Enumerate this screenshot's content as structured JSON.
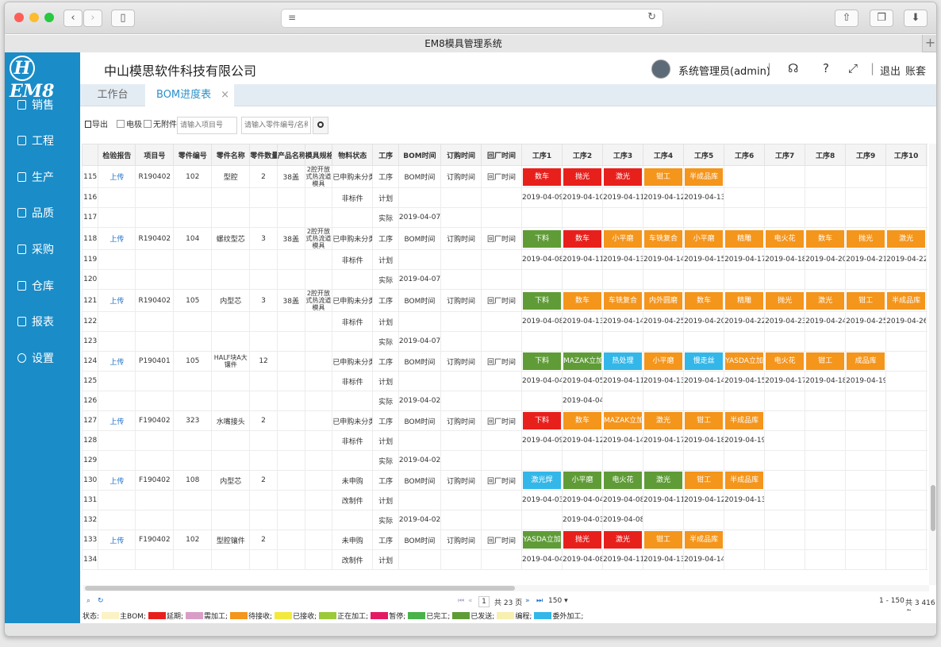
{
  "browser": {
    "tab_title": "EM8模具管理系统"
  },
  "sidebar": {
    "logo_text": "EM8",
    "logo_glyph": "H",
    "items": [
      {
        "label": "销售",
        "icon": "sales-icon"
      },
      {
        "label": "工程",
        "icon": "project-icon"
      },
      {
        "label": "生产",
        "icon": "production-icon"
      },
      {
        "label": "品质",
        "icon": "quality-icon"
      },
      {
        "label": "采购",
        "icon": "purchase-icon"
      },
      {
        "label": "仓库",
        "icon": "warehouse-icon"
      },
      {
        "label": "报表",
        "icon": "report-icon"
      },
      {
        "label": "设置",
        "icon": "settings-icon"
      }
    ]
  },
  "header": {
    "company": "中山模思软件科技有限公司",
    "user": "系统管理员(admin)",
    "logout": "退出",
    "account": "账套"
  },
  "tabs": [
    {
      "label": "工作台"
    },
    {
      "label": "BOM进度表"
    }
  ],
  "toolbar": {
    "export": "导出",
    "electrode": "电极",
    "no_attachment": "无附件",
    "project_placeholder": "请输入项目号",
    "part_placeholder": "请输入零件编号/名称"
  },
  "grid": {
    "columns": [
      "",
      "检验报告",
      "项目号",
      "零件编号",
      "零件名称",
      "零件数量",
      "产品名称",
      "模具规格",
      "物料状态",
      "工序",
      "BOM时间",
      "订购时间",
      "回厂时间",
      "工序1",
      "工序2",
      "工序3",
      "工序4",
      "工序5",
      "工序6",
      "工序7",
      "工序8",
      "工序9",
      "工序10",
      "工序"
    ],
    "groups": [
      {
        "rows": [
          {
            "no": "115",
            "report": "上传",
            "project": "R190402",
            "part_no": "102",
            "part_name": "型腔",
            "qty": "2",
            "product": "38盖",
            "spec": "2腔开放式热流道模具",
            "material": "已申购未分类",
            "proc": "工序",
            "bom": "BOM时间",
            "order": "订购时间",
            "back": "回厂时间",
            "steps": [
              {
                "t": "数车",
                "c": "red"
              },
              {
                "t": "抛光",
                "c": "red"
              },
              {
                "t": "激光",
                "c": "red"
              },
              {
                "t": "钳工",
                "c": "orange"
              },
              {
                "t": "半成品库",
                "c": "orange"
              }
            ]
          },
          {
            "no": "116",
            "material": "非标件",
            "proc": "计划",
            "steps": [
              {
                "t": "2019-04-09"
              },
              {
                "t": "2019-04-10"
              },
              {
                "t": "2019-04-11"
              },
              {
                "t": "2019-04-12"
              },
              {
                "t": "2019-04-13"
              }
            ]
          },
          {
            "no": "117",
            "proc": "实际",
            "bom": "2019-04-07",
            "steps": []
          }
        ]
      },
      {
        "rows": [
          {
            "no": "118",
            "report": "上传",
            "project": "R190402",
            "part_no": "104",
            "part_name": "螺纹型芯",
            "qty": "3",
            "product": "38盖",
            "spec": "2腔开放式热流道模具",
            "material": "已申购未分类",
            "proc": "工序",
            "bom": "BOM时间",
            "order": "订购时间",
            "back": "回厂时间",
            "steps": [
              {
                "t": "下料",
                "c": "green"
              },
              {
                "t": "数车",
                "c": "red"
              },
              {
                "t": "小平磨",
                "c": "orange"
              },
              {
                "t": "车铣复合",
                "c": "orange"
              },
              {
                "t": "小平磨",
                "c": "orange"
              },
              {
                "t": "精雕",
                "c": "orange"
              },
              {
                "t": "电火花",
                "c": "orange"
              },
              {
                "t": "数车",
                "c": "orange"
              },
              {
                "t": "抛光",
                "c": "orange"
              },
              {
                "t": "激光",
                "c": "orange"
              },
              {
                "t": "",
                "c": "orange"
              }
            ]
          },
          {
            "no": "119",
            "material": "非标件",
            "proc": "计划",
            "steps": [
              {
                "t": "2019-04-08"
              },
              {
                "t": "2019-04-11"
              },
              {
                "t": "2019-04-13"
              },
              {
                "t": "2019-04-14"
              },
              {
                "t": "2019-04-15"
              },
              {
                "t": "2019-04-17"
              },
              {
                "t": "2019-04-18"
              },
              {
                "t": "2019-04-20"
              },
              {
                "t": "2019-04-21"
              },
              {
                "t": "2019-04-22"
              },
              {
                "t": "201"
              }
            ]
          },
          {
            "no": "120",
            "proc": "实际",
            "bom": "2019-04-07",
            "steps": []
          }
        ]
      },
      {
        "rows": [
          {
            "no": "121",
            "report": "上传",
            "project": "R190402",
            "part_no": "105",
            "part_name": "内型芯",
            "qty": "3",
            "product": "38盖",
            "spec": "2腔开放式热流道模具",
            "material": "已申购未分类",
            "proc": "工序",
            "bom": "BOM时间",
            "order": "订购时间",
            "back": "回厂时间",
            "steps": [
              {
                "t": "下料",
                "c": "green"
              },
              {
                "t": "数车",
                "c": "orange"
              },
              {
                "t": "车铣复合",
                "c": "orange"
              },
              {
                "t": "内外圆磨",
                "c": "orange"
              },
              {
                "t": "数车",
                "c": "orange"
              },
              {
                "t": "精雕",
                "c": "orange"
              },
              {
                "t": "抛光",
                "c": "orange"
              },
              {
                "t": "激光",
                "c": "orange"
              },
              {
                "t": "钳工",
                "c": "orange"
              },
              {
                "t": "半成品库",
                "c": "orange"
              }
            ]
          },
          {
            "no": "122",
            "material": "非标件",
            "proc": "计划",
            "steps": [
              {
                "t": "2019-04-08"
              },
              {
                "t": "2019-04-13"
              },
              {
                "t": "2019-04-14"
              },
              {
                "t": "2019-04-25"
              },
              {
                "t": "2019-04-20"
              },
              {
                "t": "2019-04-22"
              },
              {
                "t": "2019-04-23"
              },
              {
                "t": "2019-04-24"
              },
              {
                "t": "2019-04-25"
              },
              {
                "t": "2019-04-26"
              }
            ]
          },
          {
            "no": "123",
            "proc": "实际",
            "bom": "2019-04-07",
            "steps": []
          }
        ]
      },
      {
        "rows": [
          {
            "no": "124",
            "report": "上传",
            "project": "P190401",
            "part_no": "105",
            "part_name": "HALF块A大镶件",
            "qty": "12",
            "product": "",
            "spec": "",
            "material": "已申购未分类",
            "proc": "工序",
            "bom": "BOM时间",
            "order": "订购时间",
            "back": "回厂时间",
            "steps": [
              {
                "t": "下料",
                "c": "green"
              },
              {
                "t": "MAZAK立加",
                "c": "green"
              },
              {
                "t": "热处理",
                "c": "cyan"
              },
              {
                "t": "小平磨",
                "c": "orange"
              },
              {
                "t": "慢走丝",
                "c": "cyan"
              },
              {
                "t": "YASDA立加",
                "c": "orange"
              },
              {
                "t": "电火花",
                "c": "orange"
              },
              {
                "t": "钳工",
                "c": "orange"
              },
              {
                "t": "成品库",
                "c": "orange"
              }
            ]
          },
          {
            "no": "125",
            "material": "非标件",
            "proc": "计划",
            "steps": [
              {
                "t": "2019-04-04"
              },
              {
                "t": "2019-04-05"
              },
              {
                "t": "2019-04-11"
              },
              {
                "t": "2019-04-13"
              },
              {
                "t": "2019-04-14"
              },
              {
                "t": "2019-04-15"
              },
              {
                "t": "2019-04-17"
              },
              {
                "t": "2019-04-18"
              },
              {
                "t": "2019-04-19"
              }
            ]
          },
          {
            "no": "126",
            "proc": "实际",
            "bom": "2019-04-02",
            "steps": [
              {
                "t": ""
              },
              {
                "t": "2019-04-04"
              }
            ]
          }
        ]
      },
      {
        "rows": [
          {
            "no": "127",
            "report": "上传",
            "project": "F190402",
            "part_no": "323",
            "part_name": "水嘴接头",
            "qty": "2",
            "product": "",
            "spec": "",
            "material": "已申购未分类",
            "proc": "工序",
            "bom": "BOM时间",
            "order": "订购时间",
            "back": "回厂时间",
            "steps": [
              {
                "t": "下料",
                "c": "red"
              },
              {
                "t": "数车",
                "c": "orange"
              },
              {
                "t": "MAZAK立加",
                "c": "orange"
              },
              {
                "t": "激光",
                "c": "orange"
              },
              {
                "t": "钳工",
                "c": "orange"
              },
              {
                "t": "半成品库",
                "c": "orange"
              }
            ]
          },
          {
            "no": "128",
            "material": "非标件",
            "proc": "计划",
            "steps": [
              {
                "t": "2019-04-09"
              },
              {
                "t": "2019-04-12"
              },
              {
                "t": "2019-04-14"
              },
              {
                "t": "2019-04-17"
              },
              {
                "t": "2019-04-18"
              },
              {
                "t": "2019-04-19"
              }
            ]
          },
          {
            "no": "129",
            "proc": "实际",
            "bom": "2019-04-02",
            "steps": []
          }
        ]
      },
      {
        "rows": [
          {
            "no": "130",
            "report": "上传",
            "project": "F190402",
            "part_no": "108",
            "part_name": "内型芯",
            "qty": "2",
            "product": "",
            "spec": "",
            "material": "未申购",
            "proc": "工序",
            "bom": "BOM时间",
            "order": "订购时间",
            "back": "回厂时间",
            "steps": [
              {
                "t": "激光焊",
                "c": "cyan"
              },
              {
                "t": "小平磨",
                "c": "green"
              },
              {
                "t": "电火花",
                "c": "green"
              },
              {
                "t": "激光",
                "c": "green"
              },
              {
                "t": "钳工",
                "c": "orange"
              },
              {
                "t": "半成品库",
                "c": "orange"
              }
            ]
          },
          {
            "no": "131",
            "material": "改制件",
            "proc": "计划",
            "steps": [
              {
                "t": "2019-04-03"
              },
              {
                "t": "2019-04-04"
              },
              {
                "t": "2019-04-08"
              },
              {
                "t": "2019-04-11"
              },
              {
                "t": "2019-04-12"
              },
              {
                "t": "2019-04-13"
              }
            ]
          },
          {
            "no": "132",
            "proc": "实际",
            "bom": "2019-04-02",
            "steps": [
              {
                "t": ""
              },
              {
                "t": "2019-04-03"
              },
              {
                "t": "2019-04-08"
              }
            ]
          }
        ]
      },
      {
        "rows": [
          {
            "no": "133",
            "report": "上传",
            "project": "F190402",
            "part_no": "102",
            "part_name": "型腔镶件",
            "qty": "2",
            "product": "",
            "spec": "",
            "material": "未申购",
            "proc": "工序",
            "bom": "BOM时间",
            "order": "订购时间",
            "back": "回厂时间",
            "steps": [
              {
                "t": "YASDA立加",
                "c": "green"
              },
              {
                "t": "抛光",
                "c": "red"
              },
              {
                "t": "激光",
                "c": "red"
              },
              {
                "t": "钳工",
                "c": "orange"
              },
              {
                "t": "半成品库",
                "c": "orange"
              }
            ]
          },
          {
            "no": "134",
            "material": "改制件",
            "proc": "计划",
            "steps": [
              {
                "t": "2019-04-04"
              },
              {
                "t": "2019-04-08"
              },
              {
                "t": "2019-04-11"
              },
              {
                "t": "2019-04-13"
              },
              {
                "t": "2019-04-14"
              }
            ]
          }
        ]
      }
    ]
  },
  "pager": {
    "page": "1",
    "total_pages": "共 23 页",
    "page_size": "150",
    "range": "1 - 150",
    "total": "共 3 416 条"
  },
  "legend": {
    "prefix": "状态:",
    "items": [
      {
        "label": "主BOM;",
        "color": "#fbf3c6"
      },
      {
        "label": "延期;",
        "color": "#e8201c"
      },
      {
        "label": "需加工;",
        "color": "#d99ec6"
      },
      {
        "label": "待接收;",
        "color": "#f4951c"
      },
      {
        "label": "已接收;",
        "color": "#f3e93c"
      },
      {
        "label": "正在加工;",
        "color": "#9bc93a"
      },
      {
        "label": "暂停;",
        "color": "#e31b63"
      },
      {
        "label": "已完工;",
        "color": "#49b24a"
      },
      {
        "label": "已发送;",
        "color": "#5f9c37"
      },
      {
        "label": "编程;",
        "color": "#f7f0b0"
      },
      {
        "label": "委外加工;",
        "color": "#33b7e8"
      }
    ]
  },
  "colors": {
    "red": "#e8201c",
    "orange": "#f4951c",
    "green": "#5f9c37",
    "cyan": "#33b7e8",
    "sidebar": "#1a8cc8"
  }
}
